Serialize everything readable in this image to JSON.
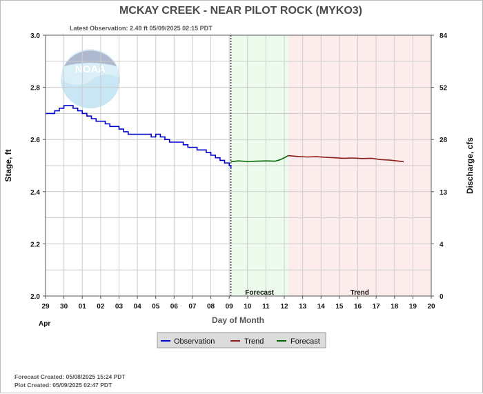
{
  "colors": {
    "observation": "#0000cc",
    "trend": "#8b1a1a",
    "forecast": "#006400",
    "forecast_region": "#ecfbec",
    "trend_region": "#fcecec",
    "grid": "#cccccc"
  },
  "logo": {
    "text": "NOAA",
    "icon": "noaa-logo-watermark"
  },
  "footer": {
    "forecast_created": "Forecast Created: 05/08/2025 15:24 PDT",
    "plot_created": "Plot Created: 05/09/2025 02:47 PDT"
  },
  "chart_data": {
    "type": "line",
    "title": "MCKAY CREEK - NEAR PILOT ROCK  (MYKO3)",
    "subtitle": "Latest Observation: 2.49 ft 05/09/2025 02:15 PDT",
    "xlabel": "Day of Month",
    "ylabel": "Stage, ft",
    "y2label": "Discharge, cfs",
    "month_label": "Apr",
    "xlim": [
      "2025-04-29T00:00",
      "2025-05-20T00:00"
    ],
    "ylim": [
      2.0,
      3.0
    ],
    "x_ticks": [
      "29",
      "30",
      "01",
      "02",
      "03",
      "04",
      "05",
      "06",
      "07",
      "08",
      "09",
      "10",
      "11",
      "12",
      "13",
      "14",
      "15",
      "16",
      "17",
      "18",
      "19",
      "20"
    ],
    "y_ticks": [
      "2.0",
      "2.2",
      "2.4",
      "2.6",
      "2.8",
      "3.0"
    ],
    "y2_ticks": [
      {
        "stage": 2.0,
        "label": "0"
      },
      {
        "stage": 2.2,
        "label": "4"
      },
      {
        "stage": 2.4,
        "label": "13"
      },
      {
        "stage": 2.6,
        "label": "28"
      },
      {
        "stage": 2.8,
        "label": "52"
      },
      {
        "stage": 3.0,
        "label": "84"
      }
    ],
    "grid": true,
    "legend": {
      "position": "bottom-center",
      "entries": [
        "Observation",
        "Trend",
        "Forecast"
      ]
    },
    "regions": [
      {
        "name": "Forecast",
        "start": "2025-05-09T02:15",
        "end": "2025-05-12T05:00"
      },
      {
        "name": "Trend",
        "start": "2025-05-12T05:00",
        "end": "2025-05-20T00:00"
      }
    ],
    "latest_observation_marker": "2025-05-09T02:15",
    "series": [
      {
        "name": "Observation",
        "x": [
          "2025-04-29T00:00",
          "2025-04-29T06:00",
          "2025-04-29T12:00",
          "2025-04-29T18:00",
          "2025-04-30T00:00",
          "2025-04-30T06:00",
          "2025-04-30T12:00",
          "2025-04-30T18:00",
          "2025-05-01T00:00",
          "2025-05-01T06:00",
          "2025-05-01T12:00",
          "2025-05-01T18:00",
          "2025-05-02T00:00",
          "2025-05-02T06:00",
          "2025-05-02T12:00",
          "2025-05-02T18:00",
          "2025-05-03T00:00",
          "2025-05-03T06:00",
          "2025-05-03T12:00",
          "2025-05-03T18:00",
          "2025-05-04T00:00",
          "2025-05-04T06:00",
          "2025-05-04T12:00",
          "2025-05-04T18:00",
          "2025-05-05T00:00",
          "2025-05-05T06:00",
          "2025-05-05T12:00",
          "2025-05-05T18:00",
          "2025-05-06T00:00",
          "2025-05-06T06:00",
          "2025-05-06T12:00",
          "2025-05-06T18:00",
          "2025-05-07T00:00",
          "2025-05-07T06:00",
          "2025-05-07T12:00",
          "2025-05-07T18:00",
          "2025-05-08T00:00",
          "2025-05-08T06:00",
          "2025-05-08T12:00",
          "2025-05-08T18:00",
          "2025-05-09T00:00",
          "2025-05-09T02:15"
        ],
        "y": [
          2.7,
          2.7,
          2.71,
          2.72,
          2.73,
          2.73,
          2.72,
          2.71,
          2.7,
          2.69,
          2.68,
          2.67,
          2.67,
          2.66,
          2.65,
          2.65,
          2.64,
          2.63,
          2.62,
          2.62,
          2.62,
          2.62,
          2.62,
          2.61,
          2.62,
          2.61,
          2.6,
          2.59,
          2.59,
          2.59,
          2.58,
          2.57,
          2.57,
          2.56,
          2.56,
          2.55,
          2.54,
          2.53,
          2.52,
          2.51,
          2.5,
          2.49
        ]
      },
      {
        "name": "Forecast",
        "x": [
          "2025-05-09T02:15",
          "2025-05-09T12:00",
          "2025-05-10T00:00",
          "2025-05-10T12:00",
          "2025-05-11T00:00",
          "2025-05-11T12:00",
          "2025-05-11T18:00",
          "2025-05-12T00:00",
          "2025-05-12T05:00"
        ],
        "y": [
          2.515,
          2.518,
          2.516,
          2.517,
          2.518,
          2.517,
          2.522,
          2.53,
          2.538
        ]
      },
      {
        "name": "Trend",
        "x": [
          "2025-05-12T05:00",
          "2025-05-12T18:00",
          "2025-05-13T06:00",
          "2025-05-13T18:00",
          "2025-05-14T06:00",
          "2025-05-14T18:00",
          "2025-05-15T06:00",
          "2025-05-15T18:00",
          "2025-05-16T06:00",
          "2025-05-16T18:00",
          "2025-05-17T06:00",
          "2025-05-17T18:00",
          "2025-05-18T06:00",
          "2025-05-18T12:00"
        ],
        "y": [
          2.538,
          2.535,
          2.533,
          2.534,
          2.532,
          2.53,
          2.528,
          2.529,
          2.527,
          2.528,
          2.523,
          2.521,
          2.517,
          2.515
        ]
      }
    ]
  }
}
